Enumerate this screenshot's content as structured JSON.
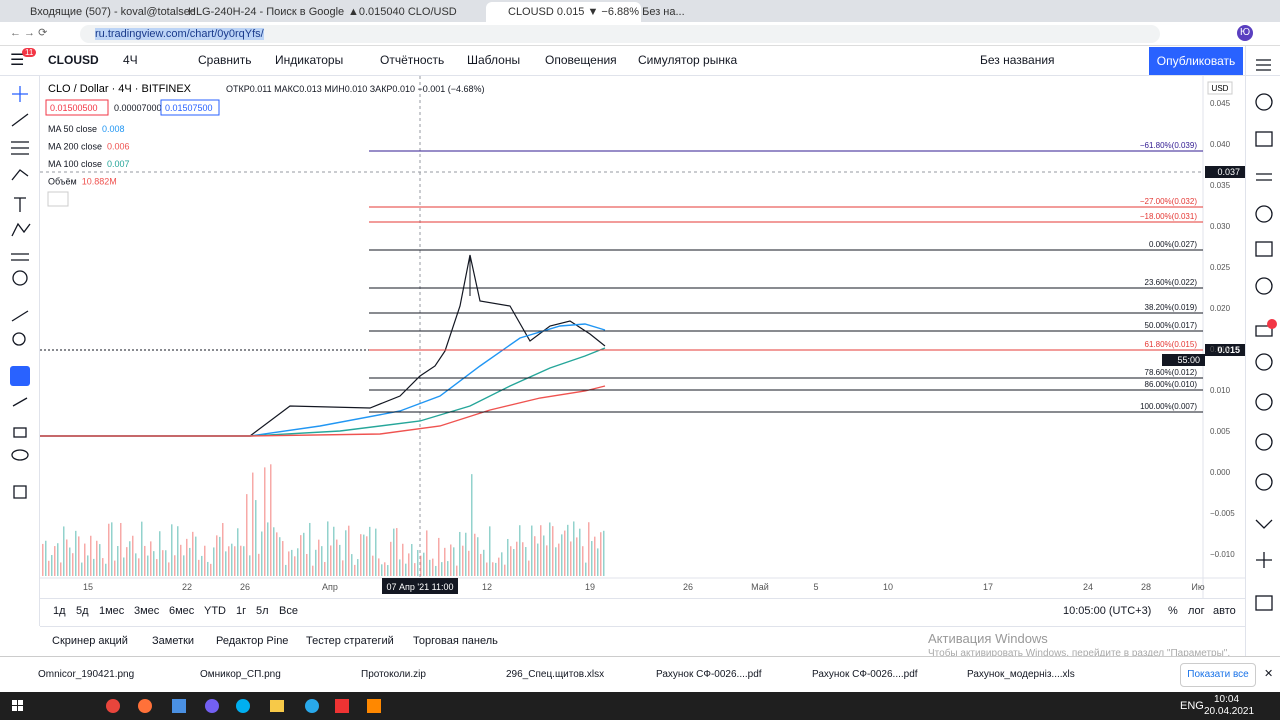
{
  "browser": {
    "tabs": [
      "Входящие (507) - koval@totalsec",
      "HLG-240H-24 - Поиск в Google",
      "▲0.015040 CLO/USD",
      "CLOUSD 0.015 ▼ −6.88% Без на..."
    ],
    "url": "ru.tradingview.com/chart/0y0rqYfs/",
    "profile": "Ю"
  },
  "toolbar": {
    "symbol": "CLOUSD",
    "interval": "4Ч",
    "buttons": [
      "Сравнить",
      "Индикаторы",
      "Отчётность",
      "Шаблоны",
      "Оповещения",
      "Симулятор рынка"
    ],
    "layout_name": "Без названия",
    "publish": "Опубликовать",
    "badge": "11"
  },
  "legend": {
    "title": "CLO / Dollar · 4Ч · BITFINEX",
    "ohlc": "ОТКР0.011 МАКС0.013 МИН0.010 ЗАКР0.010 −0.001 (−4.68%)",
    "quotes": [
      "0.01500500",
      "0.00007000",
      "0.01507500"
    ],
    "indicators": [
      {
        "name": "MA 50 close",
        "value": "0.008"
      },
      {
        "name": "MA 200 close",
        "value": "0.006"
      },
      {
        "name": "MA 100 close",
        "value": "0.007"
      },
      {
        "name": "Объём",
        "value": "10.882M"
      }
    ]
  },
  "price_axis": {
    "currency": "USD",
    "labels": [
      "0.045",
      "0.040",
      "0.035",
      "0.030",
      "0.025",
      "0.020",
      "0.015",
      "0.010",
      "0.005",
      "0.000",
      "−0.005",
      "−0.010"
    ],
    "crosshair": "0.037",
    "last_price": "0.015",
    "countdown": "55:00"
  },
  "fib_levels": [
    "−61.80%(0.039)",
    "−27.00%(0.032)",
    "−18.00%(0.031)",
    "0.00%(0.027)",
    "23.60%(0.022)",
    "38.20%(0.019)",
    "50.00%(0.017)",
    "61.80%(0.015)",
    "78.60%(0.012)",
    "86.00%(0.010)",
    "100.00%(0.007)"
  ],
  "time_axis": {
    "labels": [
      "15",
      "22",
      "26",
      "Апр",
      "12",
      "19",
      "26",
      "Май",
      "5",
      "10",
      "17",
      "24",
      "28",
      "Ию"
    ],
    "crosshair": "07 Апр '21  11:00"
  },
  "ranges": [
    "1д",
    "5д",
    "1мес",
    "3мес",
    "6мес",
    "YTD",
    "1г",
    "5л",
    "Все"
  ],
  "clock": "10:05:00 (UTC+3)",
  "scale_options": [
    "%",
    "лог",
    "авто"
  ],
  "bottom_tabs": [
    "Скринер акций",
    "Заметки",
    "Редактор Pine",
    "Тестер стратегий",
    "Торговая панель"
  ],
  "activation": {
    "title": "Активация Windows",
    "text": "Чтобы активировать Windows, перейдите в раздел \"Параметры\"."
  },
  "downloads": {
    "files": [
      "Omnicor_190421.png",
      "Омникор_СП.png",
      "Протоколи.zip",
      "296_Спец.щитов.xlsx",
      "Рахунок СФ-0026....pdf",
      "Рахунок СФ-0026....pdf",
      "Рахунок_модерніз....xls"
    ],
    "show_all": "Показати все"
  },
  "taskbar": {
    "lang": "ENG",
    "time": "10:04",
    "date": "20.04.2021"
  }
}
